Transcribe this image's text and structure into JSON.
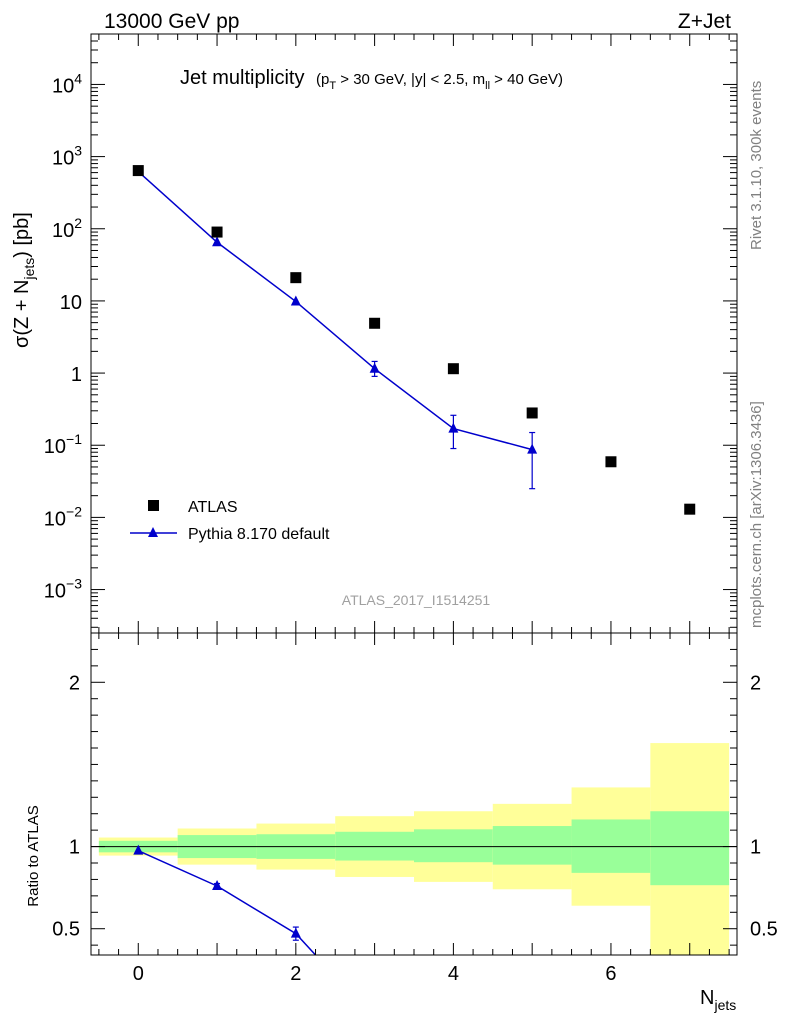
{
  "header": {
    "energy_label": "13000 GeV pp",
    "process_label": "Z+Jet"
  },
  "side_labels": {
    "rivet": "Rivet 3.1.10,  300k events",
    "mcplots": "mcplots.cern.ch [arXiv:1306.3436]"
  },
  "watermark": "ATLAS_2017_I1514251",
  "colors": {
    "mc": "#0000cc",
    "data": "#000000",
    "band_inner": "#99ff99",
    "band_outer": "#ffff99"
  },
  "chart_data": [
    {
      "type": "scatter",
      "title": "Jet multiplicity",
      "ylabel": "σ(Z + N_jets) [pb]",
      "xlim": [
        -0.6,
        7.6
      ],
      "ylim": [
        0.00025,
        50000
      ],
      "log_y": true,
      "x_ticks": [
        0,
        2,
        4,
        6
      ],
      "y_ticks": [
        {
          "value": 0.001,
          "base": "10",
          "exp": "−3"
        },
        {
          "value": 0.01,
          "base": "10",
          "exp": "−2"
        },
        {
          "value": 0.1,
          "base": "10",
          "exp": "−1"
        },
        {
          "value": 1,
          "base": "1",
          "exp": ""
        },
        {
          "value": 10,
          "base": "10",
          "exp": ""
        },
        {
          "value": 100,
          "base": "10",
          "exp": "2"
        },
        {
          "value": 1000,
          "base": "10",
          "exp": "3"
        },
        {
          "value": 10000,
          "base": "10",
          "exp": "4"
        }
      ],
      "legend_position": "bottom-left",
      "series": [
        {
          "name": "ATLAS",
          "style": "square-marker",
          "x": [
            0,
            1,
            2,
            3,
            4,
            5,
            6,
            7
          ],
          "y": [
            640,
            90,
            21,
            4.9,
            1.15,
            0.28,
            0.059,
            0.013
          ]
        },
        {
          "name": "Pythia 8.170 default",
          "style": "line-triangle",
          "x": [
            0,
            1,
            2,
            3,
            4,
            5
          ],
          "y": [
            620,
            65,
            9.8,
            1.15,
            0.17,
            0.087
          ],
          "err_low": [
            0,
            0,
            0,
            0.25,
            0.08,
            0.062
          ],
          "err_high": [
            0,
            0,
            0,
            0.3,
            0.09,
            0.063
          ]
        }
      ]
    },
    {
      "type": "line",
      "ylabel": "Ratio to ATLAS",
      "xlabel": "N_jets",
      "xlim": [
        -0.6,
        7.6
      ],
      "ylim": [
        0.34,
        2.3
      ],
      "y_ticks": [
        0.5,
        1,
        2
      ],
      "x_ticks": [
        0,
        2,
        4,
        6
      ],
      "bins": [
        -0.5,
        0.5,
        1.5,
        2.5,
        3.5,
        4.5,
        5.5,
        6.5,
        7.5
      ],
      "band_inner": [
        [
          0.965,
          1.035
        ],
        [
          0.93,
          1.07
        ],
        [
          0.925,
          1.075
        ],
        [
          0.915,
          1.09
        ],
        [
          0.905,
          1.105
        ],
        [
          0.89,
          1.125
        ],
        [
          0.84,
          1.165
        ],
        [
          0.765,
          1.215
        ]
      ],
      "band_outer": [
        [
          0.945,
          1.055
        ],
        [
          0.89,
          1.11
        ],
        [
          0.86,
          1.14
        ],
        [
          0.815,
          1.185
        ],
        [
          0.785,
          1.215
        ],
        [
          0.74,
          1.26
        ],
        [
          0.64,
          1.36
        ],
        [
          0.34,
          1.63
        ]
      ],
      "series": [
        {
          "name": "Pythia 8.170 default",
          "x": [
            0,
            1,
            2,
            2.25
          ],
          "y": [
            0.975,
            0.76,
            0.47,
            0.34
          ],
          "markers": [
            true,
            true,
            true,
            false
          ],
          "err": [
            0,
            0.015,
            0.04,
            0
          ]
        }
      ]
    }
  ]
}
